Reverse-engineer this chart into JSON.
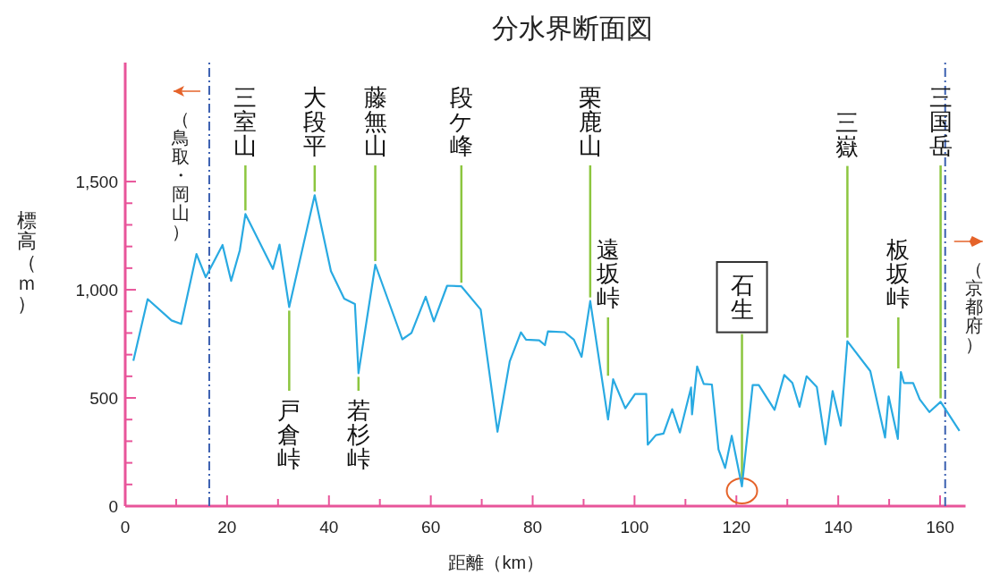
{
  "chart_data": {
    "type": "line",
    "title": "分水界断面図",
    "xlabel": "距離（km）",
    "ylabel": "標高（ｍ）",
    "x": [
      1.6,
      4.4,
      9.1,
      11.0,
      14.0,
      15.8,
      19.1,
      20.8,
      22.5,
      23.6,
      29.0,
      30.3,
      32.2,
      37.2,
      40.4,
      43.0,
      45.1,
      45.8,
      49.1,
      54.4,
      56.2,
      59.0,
      60.6,
      63.2,
      66.0,
      69.8,
      73.1,
      75.5,
      77.7,
      78.7,
      81.3,
      82.4,
      83.0,
      86.3,
      88.1,
      89.6,
      91.3,
      94.8,
      95.8,
      98.2,
      100.1,
      102.3,
      102.6,
      104.2,
      105.7,
      107.4,
      108.9,
      111.1,
      111.3,
      112.3,
      113.6,
      115.2,
      116.5,
      117.8,
      119.1,
      121.1,
      123.2,
      124.4,
      127.5,
      129.4,
      131.0,
      132.4,
      133.8,
      135.8,
      137.5,
      138.9,
      140.5,
      141.8,
      146.3,
      149.2,
      149.9,
      151.7,
      152.3,
      152.9,
      154.7,
      156.0,
      157.9,
      160.1,
      163.8
    ],
    "series": [
      {
        "color": "#29aae2",
        "values": [
          672,
          957,
          858,
          842,
          1165,
          1058,
          1207,
          1041,
          1182,
          1350,
          1096,
          1209,
          920,
          1437,
          1086,
          959,
          934,
          614,
          1116,
          771,
          800,
          968,
          854,
          1019,
          1016,
          909,
          344,
          669,
          803,
          769,
          766,
          744,
          807,
          804,
          769,
          690,
          948,
          400,
          586,
          452,
          518,
          518,
          284,
          328,
          335,
          448,
          340,
          548,
          424,
          645,
          565,
          562,
          262,
          176,
          325,
          91,
          559,
          559,
          445,
          606,
          569,
          459,
          600,
          551,
          286,
          532,
          372,
          762,
          624,
          317,
          507,
          311,
          620,
          569,
          569,
          493,
          435,
          482,
          348
        ]
      }
    ],
    "xlim": [
      0,
      165
    ],
    "ylim": [
      0,
      2050
    ],
    "xticks": [
      0,
      {
        "value": 10,
        "label": null
      },
      20,
      {
        "value": 30,
        "label": null
      },
      40,
      {
        "value": 50,
        "label": null
      },
      60,
      {
        "value": 70,
        "label": null
      },
      80,
      {
        "value": 90,
        "label": null
      },
      100,
      {
        "value": 110,
        "label": null
      },
      120,
      {
        "value": 130,
        "label": null
      },
      140,
      {
        "value": 150,
        "label": null
      },
      160
    ],
    "yticks": [
      0,
      {
        "value": 100,
        "label": null
      },
      {
        "value": 200,
        "label": null
      },
      {
        "value": 300,
        "label": null
      },
      {
        "value": 400,
        "label": null
      },
      500,
      {
        "value": 600,
        "label": null
      },
      {
        "value": 700,
        "label": null
      },
      {
        "value": 800,
        "label": null
      },
      {
        "value": 900,
        "label": null
      },
      {
        "value": 1000,
        "label": "1,000"
      },
      {
        "value": 1100,
        "label": null
      },
      {
        "value": 1200,
        "label": null
      },
      {
        "value": 1300,
        "label": null
      },
      {
        "value": 1400,
        "label": null
      },
      {
        "value": 1500,
        "label": "1,500"
      }
    ],
    "grid": false,
    "marker": "none",
    "line_style": "solid",
    "ref_lines": [
      {
        "axis": "x",
        "value": 16.5,
        "label": "（鳥取・岡山）",
        "color": "#3a5fb0",
        "line_style": "dashdot"
      },
      {
        "axis": "x",
        "value": 161,
        "label": "（京都府）",
        "color": "#3a5fb0",
        "line_style": "dashdot"
      }
    ],
    "annotations": [
      {
        "text": "三室山",
        "x": 23.6,
        "y": 1350
      },
      {
        "text": "戸倉峠",
        "x": 32.2,
        "y": 920
      },
      {
        "text": "大段平",
        "x": 37.2,
        "y": 1437
      },
      {
        "text": "若杉峠",
        "x": 45.8,
        "y": 614
      },
      {
        "text": "藤無山",
        "x": 49.1,
        "y": 1116
      },
      {
        "text": "段ケ峰",
        "x": 66.0,
        "y": 1016
      },
      {
        "text": "栗鹿山",
        "x": 91.3,
        "y": 948
      },
      {
        "text": "遠坂峠",
        "x": 94.8,
        "y": 586
      },
      {
        "text": "石生",
        "x": 121.1,
        "y": 91
      },
      {
        "text": "三嶽",
        "x": 141.8,
        "y": 762
      },
      {
        "text": "板坂峠",
        "x": 151.8,
        "y": 620
      },
      {
        "text": "三国岳",
        "x": 160.1,
        "y": 482
      }
    ]
  }
}
